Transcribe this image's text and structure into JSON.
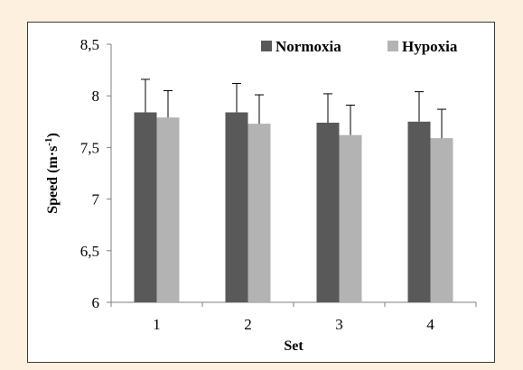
{
  "chart_data": {
    "type": "bar",
    "title": "",
    "xlabel": "Set",
    "ylabel": "Speed (m·s",
    "ylabel_superscript": "-1",
    "ylabel_close": ")",
    "categories": [
      "1",
      "2",
      "3",
      "4"
    ],
    "ylim": [
      6,
      8.5
    ],
    "yticks": [
      6,
      6.5,
      7,
      7.5,
      8,
      8.5
    ],
    "ytick_labels": [
      "6",
      "6,5",
      "7",
      "7,5",
      "8",
      "8,5"
    ],
    "grid": false,
    "legend_position": "top-right",
    "error_bars": "upper",
    "series": [
      {
        "name": "Normoxia",
        "color": "#595959",
        "values": [
          7.84,
          7.84,
          7.74,
          7.75
        ],
        "errors": [
          0.32,
          0.28,
          0.28,
          0.29
        ]
      },
      {
        "name": "Hypoxia",
        "color": "#b3b3b3",
        "values": [
          7.79,
          7.73,
          7.62,
          7.59
        ],
        "errors": [
          0.26,
          0.28,
          0.29,
          0.28
        ]
      }
    ]
  }
}
